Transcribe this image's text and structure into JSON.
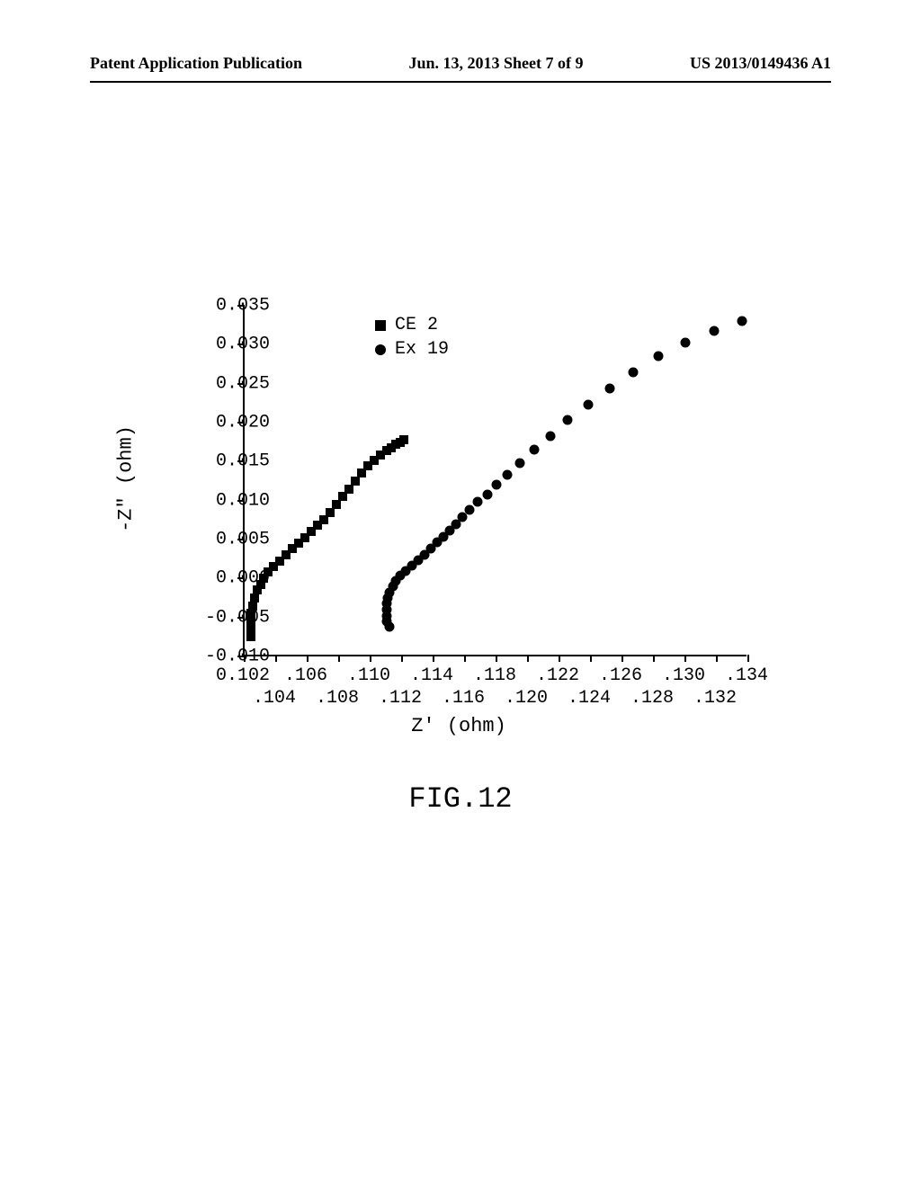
{
  "header": {
    "left": "Patent Application Publication",
    "center": "Jun. 13, 2013 Sheet 7 of 9",
    "right": "US 2013/0149436 A1"
  },
  "chart": {
    "type": "scatter",
    "xlabel": "Z' (ohm)",
    "ylabel": "-Z\" (ohm)",
    "xlim": [
      0.102,
      0.134
    ],
    "ylim": [
      -0.01,
      0.035
    ],
    "yticks": [
      -0.01,
      -0.005,
      0.0,
      0.005,
      0.01,
      0.015,
      0.02,
      0.025,
      0.03,
      0.035
    ],
    "ytick_labels": [
      "-0.010",
      "-0.005",
      "0.000",
      "0.005",
      "0.010",
      "0.015",
      "0.020",
      "0.025",
      "0.030",
      "0.035"
    ],
    "xticks_major": [
      0.102,
      0.106,
      0.11,
      0.114,
      0.118,
      0.122,
      0.126,
      0.13,
      0.134
    ],
    "xticks_minor": [
      0.104,
      0.108,
      0.112,
      0.116,
      0.12,
      0.124,
      0.128,
      0.132
    ],
    "xtick_labels_top": [
      "0.102",
      ".106",
      ".110",
      ".114",
      ".118",
      ".122",
      ".126",
      ".130",
      ".134"
    ],
    "xtick_labels_bottom": [
      ".104",
      ".108",
      ".112",
      ".116",
      ".120",
      ".124",
      ".128",
      ".132"
    ],
    "legend": [
      {
        "marker": "square",
        "label": "CE 2"
      },
      {
        "marker": "circle",
        "label": "Ex 19"
      }
    ],
    "marker_color": "#000000",
    "background_color": "#ffffff",
    "series_ce2": {
      "marker": "square",
      "x": [
        0.1024,
        0.1024,
        0.1024,
        0.1024,
        0.1025,
        0.1026,
        0.1028,
        0.103,
        0.1032,
        0.1035,
        0.1038,
        0.1042,
        0.1046,
        0.105,
        0.1054,
        0.1058,
        0.1062,
        0.1066,
        0.107,
        0.1074,
        0.1078,
        0.1082,
        0.1086,
        0.109,
        0.1094,
        0.1098,
        0.1102,
        0.1106,
        0.111,
        0.1113,
        0.1116,
        0.1119,
        0.1121
      ],
      "y": [
        -0.0075,
        -0.0065,
        -0.0055,
        -0.0045,
        -0.0035,
        -0.0025,
        -0.0015,
        -0.0008,
        0.0,
        0.0008,
        0.0015,
        0.0022,
        0.003,
        0.0038,
        0.0045,
        0.0052,
        0.006,
        0.0068,
        0.0075,
        0.0085,
        0.0095,
        0.0105,
        0.0115,
        0.0125,
        0.0135,
        0.0145,
        0.0152,
        0.0158,
        0.0164,
        0.0168,
        0.0172,
        0.0175,
        0.0178
      ]
    },
    "series_ex19": {
      "marker": "circle",
      "x": [
        0.1112,
        0.111,
        0.111,
        0.111,
        0.111,
        0.1111,
        0.1112,
        0.1114,
        0.1116,
        0.1119,
        0.1122,
        0.1126,
        0.113,
        0.1134,
        0.1138,
        0.1142,
        0.1146,
        0.115,
        0.1154,
        0.1158,
        0.1163,
        0.1168,
        0.1174,
        0.118,
        0.1187,
        0.1195,
        0.1204,
        0.1214,
        0.1225,
        0.1238,
        0.1252,
        0.1267,
        0.1283,
        0.13,
        0.1318,
        0.1336
      ],
      "y": [
        -0.0062,
        -0.0055,
        -0.0048,
        -0.004,
        -0.0032,
        -0.0025,
        -0.0018,
        -0.001,
        -0.0003,
        0.0004,
        0.001,
        0.0016,
        0.0023,
        0.003,
        0.0038,
        0.0046,
        0.0054,
        0.0062,
        0.007,
        0.0079,
        0.0088,
        0.0098,
        0.0108,
        0.012,
        0.0133,
        0.0148,
        0.0165,
        0.0183,
        0.0203,
        0.0223,
        0.0244,
        0.0265,
        0.0285,
        0.0303,
        0.0318,
        0.033
      ]
    }
  },
  "figure_label": "FIG.12"
}
